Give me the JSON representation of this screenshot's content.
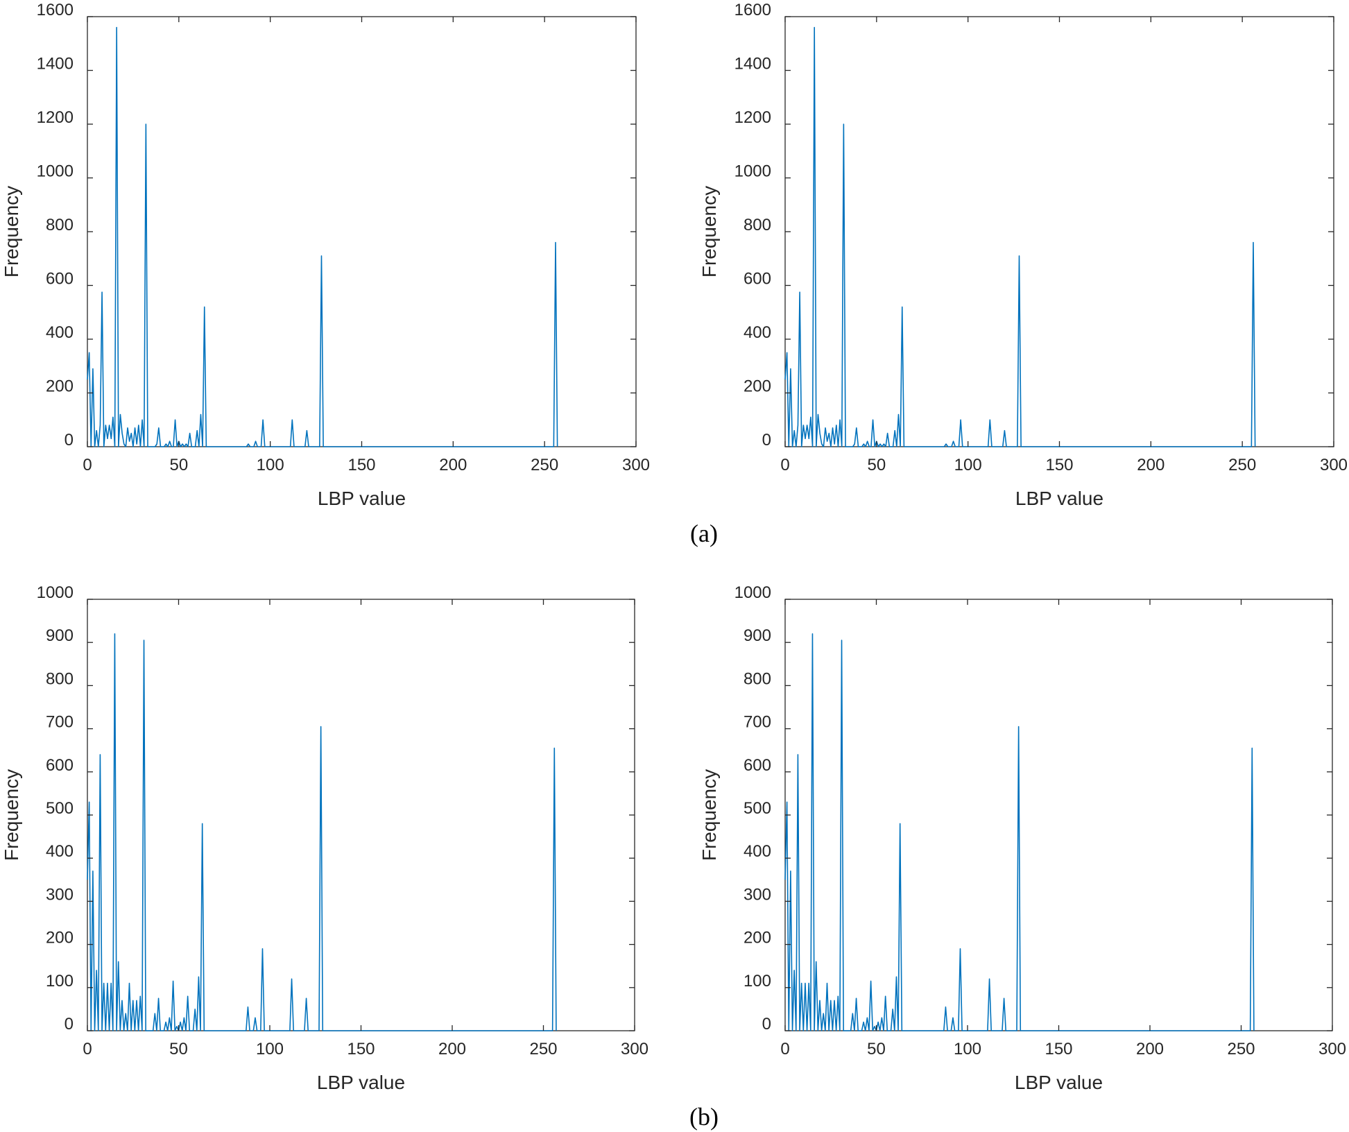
{
  "captions": {
    "a": "(a)",
    "b": "(b)"
  },
  "colors": {
    "line": "#0072BD",
    "axis": "#262626"
  },
  "chart_data": [
    {
      "id": "a-left",
      "type": "line",
      "xlabel": "LBP value",
      "ylabel": "Frequency",
      "xlim": [
        0,
        300
      ],
      "ylim": [
        0,
        1600
      ],
      "xticks": [
        0,
        50,
        100,
        150,
        200,
        250,
        300
      ],
      "yticks": [
        0,
        200,
        400,
        600,
        800,
        1000,
        1200,
        1400,
        1600
      ],
      "x": [
        0,
        1,
        2,
        3,
        4,
        5,
        6,
        7,
        8,
        9,
        10,
        11,
        12,
        13,
        14,
        15,
        16,
        17,
        18,
        19,
        20,
        21,
        22,
        23,
        24,
        25,
        26,
        27,
        28,
        29,
        30,
        31,
        32,
        33,
        34,
        35,
        36,
        37,
        38,
        39,
        40,
        41,
        42,
        43,
        44,
        45,
        46,
        47,
        48,
        49,
        50,
        51,
        52,
        53,
        54,
        55,
        56,
        57,
        58,
        59,
        60,
        61,
        62,
        63,
        64,
        65,
        86,
        87,
        88,
        89,
        90,
        91,
        92,
        93,
        94,
        95,
        96,
        97,
        110,
        111,
        112,
        113,
        118,
        119,
        120,
        121,
        126,
        127,
        128,
        129,
        254,
        255,
        256,
        257
      ],
      "y": [
        250,
        350,
        0,
        290,
        0,
        60,
        0,
        80,
        575,
        0,
        80,
        30,
        80,
        30,
        110,
        0,
        1560,
        0,
        120,
        50,
        10,
        0,
        70,
        20,
        50,
        0,
        70,
        10,
        80,
        0,
        100,
        0,
        1200,
        0,
        0,
        0,
        0,
        0,
        10,
        70,
        0,
        0,
        0,
        10,
        0,
        20,
        0,
        0,
        100,
        0,
        20,
        0,
        10,
        0,
        10,
        0,
        50,
        0,
        0,
        0,
        60,
        0,
        120,
        0,
        520,
        0,
        0,
        0,
        10,
        0,
        0,
        0,
        20,
        0,
        0,
        0,
        100,
        0,
        0,
        0,
        100,
        0,
        0,
        0,
        60,
        0,
        0,
        0,
        710,
        0,
        0,
        0,
        760,
        0
      ]
    },
    {
      "id": "a-right",
      "type": "line",
      "xlabel": "LBP value",
      "ylabel": "Frequency",
      "xlim": [
        0,
        300
      ],
      "ylim": [
        0,
        1600
      ],
      "xticks": [
        0,
        50,
        100,
        150,
        200,
        250,
        300
      ],
      "yticks": [
        0,
        200,
        400,
        600,
        800,
        1000,
        1200,
        1400,
        1600
      ],
      "x": [
        0,
        1,
        2,
        3,
        4,
        5,
        6,
        7,
        8,
        9,
        10,
        11,
        12,
        13,
        14,
        15,
        16,
        17,
        18,
        19,
        20,
        21,
        22,
        23,
        24,
        25,
        26,
        27,
        28,
        29,
        30,
        31,
        32,
        33,
        34,
        35,
        36,
        37,
        38,
        39,
        40,
        41,
        42,
        43,
        44,
        45,
        46,
        47,
        48,
        49,
        50,
        51,
        52,
        53,
        54,
        55,
        56,
        57,
        58,
        59,
        60,
        61,
        62,
        63,
        64,
        65,
        86,
        87,
        88,
        89,
        90,
        91,
        92,
        93,
        94,
        95,
        96,
        97,
        110,
        111,
        112,
        113,
        118,
        119,
        120,
        121,
        126,
        127,
        128,
        129,
        254,
        255,
        256,
        257
      ],
      "y": [
        250,
        350,
        0,
        290,
        0,
        60,
        0,
        80,
        575,
        0,
        80,
        30,
        80,
        30,
        110,
        0,
        1560,
        0,
        120,
        50,
        10,
        0,
        70,
        20,
        50,
        0,
        70,
        10,
        80,
        0,
        100,
        0,
        1200,
        0,
        0,
        0,
        0,
        0,
        10,
        70,
        0,
        0,
        0,
        10,
        0,
        20,
        0,
        0,
        100,
        0,
        20,
        0,
        10,
        0,
        10,
        0,
        50,
        0,
        0,
        0,
        60,
        0,
        120,
        0,
        520,
        0,
        0,
        0,
        10,
        0,
        0,
        0,
        20,
        0,
        0,
        0,
        100,
        0,
        0,
        0,
        100,
        0,
        0,
        0,
        60,
        0,
        0,
        0,
        710,
        0,
        0,
        0,
        760,
        0
      ]
    },
    {
      "id": "b-left",
      "type": "line",
      "xlabel": "LBP value",
      "ylabel": "Frequency",
      "xlim": [
        0,
        300
      ],
      "ylim": [
        0,
        1000
      ],
      "xticks": [
        0,
        50,
        100,
        150,
        200,
        250,
        300
      ],
      "yticks": [
        0,
        100,
        200,
        300,
        400,
        500,
        600,
        700,
        800,
        900,
        1000
      ],
      "x": [
        0,
        1,
        2,
        3,
        4,
        5,
        6,
        7,
        8,
        9,
        10,
        11,
        12,
        13,
        14,
        15,
        16,
        17,
        18,
        19,
        20,
        21,
        22,
        23,
        24,
        25,
        26,
        27,
        28,
        29,
        30,
        31,
        32,
        33,
        34,
        35,
        36,
        37,
        38,
        39,
        40,
        41,
        42,
        43,
        44,
        45,
        46,
        47,
        48,
        49,
        50,
        51,
        52,
        53,
        54,
        55,
        56,
        57,
        58,
        59,
        60,
        61,
        62,
        63,
        64,
        65,
        86,
        87,
        88,
        89,
        90,
        91,
        92,
        93,
        94,
        95,
        96,
        97,
        110,
        111,
        112,
        113,
        118,
        119,
        120,
        121,
        126,
        127,
        128,
        129,
        250,
        251,
        252,
        253,
        254,
        255,
        256,
        257
      ],
      "y": [
        350,
        530,
        0,
        370,
        0,
        140,
        0,
        640,
        0,
        110,
        0,
        110,
        0,
        110,
        0,
        920,
        0,
        160,
        0,
        70,
        0,
        40,
        0,
        110,
        0,
        70,
        0,
        70,
        0,
        80,
        0,
        905,
        0,
        0,
        0,
        0,
        0,
        40,
        0,
        75,
        0,
        0,
        0,
        20,
        0,
        30,
        0,
        115,
        0,
        10,
        0,
        20,
        0,
        30,
        0,
        80,
        0,
        0,
        0,
        50,
        0,
        125,
        0,
        480,
        0,
        0,
        0,
        0,
        55,
        0,
        0,
        0,
        30,
        0,
        0,
        0,
        190,
        0,
        0,
        0,
        120,
        0,
        0,
        0,
        75,
        0,
        0,
        0,
        705,
        0,
        0,
        0,
        0,
        0,
        0,
        0,
        655,
        0
      ]
    },
    {
      "id": "b-right",
      "type": "line",
      "xlabel": "LBP value",
      "ylabel": "Frequency",
      "xlim": [
        0,
        300
      ],
      "ylim": [
        0,
        1000
      ],
      "xticks": [
        0,
        50,
        100,
        150,
        200,
        250,
        300
      ],
      "yticks": [
        0,
        100,
        200,
        300,
        400,
        500,
        600,
        700,
        800,
        900,
        1000
      ],
      "x": [
        0,
        1,
        2,
        3,
        4,
        5,
        6,
        7,
        8,
        9,
        10,
        11,
        12,
        13,
        14,
        15,
        16,
        17,
        18,
        19,
        20,
        21,
        22,
        23,
        24,
        25,
        26,
        27,
        28,
        29,
        30,
        31,
        32,
        33,
        34,
        35,
        36,
        37,
        38,
        39,
        40,
        41,
        42,
        43,
        44,
        45,
        46,
        47,
        48,
        49,
        50,
        51,
        52,
        53,
        54,
        55,
        56,
        57,
        58,
        59,
        60,
        61,
        62,
        63,
        64,
        65,
        86,
        87,
        88,
        89,
        90,
        91,
        92,
        93,
        94,
        95,
        96,
        97,
        110,
        111,
        112,
        113,
        118,
        119,
        120,
        121,
        126,
        127,
        128,
        129,
        250,
        251,
        252,
        253,
        254,
        255,
        256,
        257
      ],
      "y": [
        350,
        530,
        0,
        370,
        0,
        140,
        0,
        640,
        0,
        110,
        0,
        110,
        0,
        110,
        0,
        920,
        0,
        160,
        0,
        70,
        0,
        40,
        0,
        110,
        0,
        70,
        0,
        70,
        0,
        80,
        0,
        905,
        0,
        0,
        0,
        0,
        0,
        40,
        0,
        75,
        0,
        0,
        0,
        20,
        0,
        30,
        0,
        115,
        0,
        10,
        0,
        20,
        0,
        30,
        0,
        80,
        0,
        0,
        0,
        50,
        0,
        125,
        0,
        480,
        0,
        0,
        0,
        0,
        55,
        0,
        0,
        0,
        30,
        0,
        0,
        0,
        190,
        0,
        0,
        0,
        120,
        0,
        0,
        0,
        75,
        0,
        0,
        0,
        705,
        0,
        0,
        0,
        0,
        0,
        0,
        0,
        655,
        0
      ]
    }
  ]
}
